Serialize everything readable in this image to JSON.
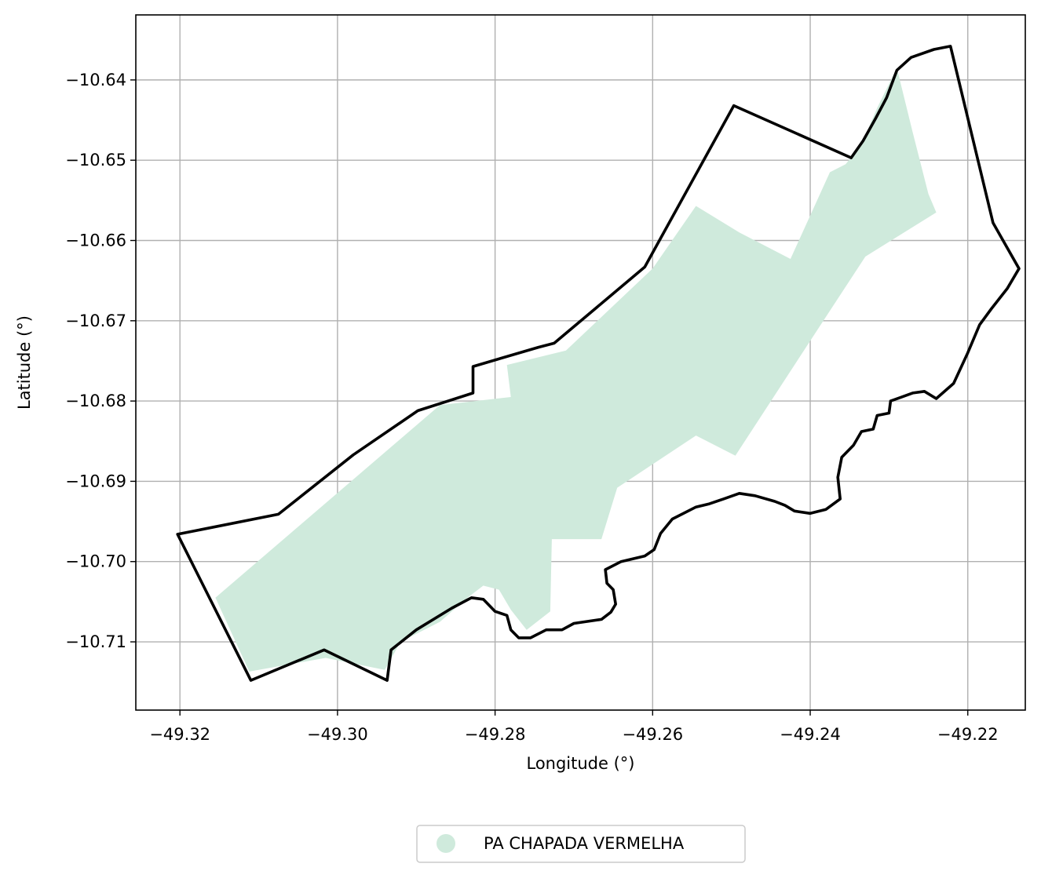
{
  "chart_data": {
    "type": "map",
    "title": "",
    "xlabel": "Longitude (°)",
    "ylabel": "Latitude (°)",
    "xlim": [
      -49.3256,
      -49.2127
    ],
    "ylim": [
      -10.7185,
      -10.6319
    ],
    "grid": true,
    "x_ticks": [
      {
        "value": -49.32,
        "label": "−49.32"
      },
      {
        "value": -49.3,
        "label": "−49.30"
      },
      {
        "value": -49.28,
        "label": "−49.28"
      },
      {
        "value": -49.26,
        "label": "−49.26"
      },
      {
        "value": -49.24,
        "label": "−49.24"
      },
      {
        "value": -49.22,
        "label": "−49.22"
      }
    ],
    "y_ticks": [
      {
        "value": -10.64,
        "label": "−10.64"
      },
      {
        "value": -10.65,
        "label": "−10.65"
      },
      {
        "value": -10.66,
        "label": "−10.66"
      },
      {
        "value": -10.67,
        "label": "−10.67"
      },
      {
        "value": -10.68,
        "label": "−10.68"
      },
      {
        "value": -10.69,
        "label": "−10.69"
      },
      {
        "value": -10.7,
        "label": "−10.70"
      },
      {
        "value": -10.71,
        "label": "−10.71"
      }
    ],
    "layers": [
      {
        "kind": "filled-polygon",
        "name": "PA CHAPADA VERMELHA",
        "color": "#cfeadc",
        "coordinates": [
          [
            -49.3155,
            -10.7045
          ],
          [
            -49.3112,
            -10.7137
          ],
          [
            -49.3015,
            -10.712
          ],
          [
            -49.294,
            -10.7135
          ],
          [
            -49.292,
            -10.71
          ],
          [
            -49.287,
            -10.7075
          ],
          [
            -49.2835,
            -10.7045
          ],
          [
            -49.2815,
            -10.703
          ],
          [
            -49.2795,
            -10.7035
          ],
          [
            -49.278,
            -10.706
          ],
          [
            -49.276,
            -10.7085
          ],
          [
            -49.273,
            -10.7062
          ],
          [
            -49.2728,
            -10.6972
          ],
          [
            -49.2665,
            -10.6972
          ],
          [
            -49.2645,
            -10.6908
          ],
          [
            -49.2545,
            -10.6843
          ],
          [
            -49.2495,
            -10.6868
          ],
          [
            -49.239,
            -10.671
          ],
          [
            -49.233,
            -10.662
          ],
          [
            -49.224,
            -10.6565
          ],
          [
            -49.225,
            -10.6542
          ],
          [
            -49.227,
            -10.6465
          ],
          [
            -49.229,
            -10.6385
          ],
          [
            -49.2315,
            -10.6435
          ],
          [
            -49.2335,
            -10.648
          ],
          [
            -49.2355,
            -10.6505
          ],
          [
            -49.2375,
            -10.6515
          ],
          [
            -49.2425,
            -10.6623
          ],
          [
            -49.249,
            -10.659
          ],
          [
            -49.2545,
            -10.6557
          ],
          [
            -49.26,
            -10.6635
          ],
          [
            -49.271,
            -10.6737
          ],
          [
            -49.2785,
            -10.6755
          ],
          [
            -49.278,
            -10.6795
          ],
          [
            -49.287,
            -10.6805
          ]
        ]
      },
      {
        "kind": "outline",
        "name": "boundary",
        "color": "#000000",
        "coordinates": [
          [
            -49.3203,
            -10.6966
          ],
          [
            -49.311,
            -10.7148
          ],
          [
            -49.3017,
            -10.711
          ],
          [
            -49.2937,
            -10.7148
          ],
          [
            -49.2932,
            -10.711
          ],
          [
            -49.29,
            -10.7085
          ],
          [
            -49.2855,
            -10.7058
          ],
          [
            -49.283,
            -10.7045
          ],
          [
            -49.2815,
            -10.7047
          ],
          [
            -49.28,
            -10.7062
          ],
          [
            -49.2785,
            -10.7067
          ],
          [
            -49.278,
            -10.7085
          ],
          [
            -49.277,
            -10.7095
          ],
          [
            -49.2755,
            -10.7095
          ],
          [
            -49.2735,
            -10.7085
          ],
          [
            -49.2715,
            -10.7085
          ],
          [
            -49.27,
            -10.7077
          ],
          [
            -49.2665,
            -10.7072
          ],
          [
            -49.2653,
            -10.7063
          ],
          [
            -49.2647,
            -10.7053
          ],
          [
            -49.265,
            -10.7035
          ],
          [
            -49.2658,
            -10.7027
          ],
          [
            -49.266,
            -10.701
          ],
          [
            -49.264,
            -10.7
          ],
          [
            -49.261,
            -10.6993
          ],
          [
            -49.2598,
            -10.6985
          ],
          [
            -49.259,
            -10.6965
          ],
          [
            -49.2575,
            -10.6947
          ],
          [
            -49.2545,
            -10.6932
          ],
          [
            -49.2528,
            -10.6928
          ],
          [
            -49.251,
            -10.6922
          ],
          [
            -49.249,
            -10.6915
          ],
          [
            -49.247,
            -10.6918
          ],
          [
            -49.2445,
            -10.6925
          ],
          [
            -49.2432,
            -10.693
          ],
          [
            -49.242,
            -10.6937
          ],
          [
            -49.24,
            -10.694
          ],
          [
            -49.238,
            -10.6935
          ],
          [
            -49.2362,
            -10.6922
          ],
          [
            -49.2365,
            -10.6895
          ],
          [
            -49.236,
            -10.687
          ],
          [
            -49.2345,
            -10.6855
          ],
          [
            -49.2335,
            -10.6838
          ],
          [
            -49.232,
            -10.6835
          ],
          [
            -49.2315,
            -10.6818
          ],
          [
            -49.23,
            -10.6815
          ],
          [
            -49.2298,
            -10.68
          ],
          [
            -49.227,
            -10.679
          ],
          [
            -49.2255,
            -10.6788
          ],
          [
            -49.224,
            -10.6797
          ],
          [
            -49.2218,
            -10.6778
          ],
          [
            -49.22,
            -10.674
          ],
          [
            -49.2185,
            -10.6705
          ],
          [
            -49.217,
            -10.6685
          ],
          [
            -49.215,
            -10.666
          ],
          [
            -49.2135,
            -10.6635
          ],
          [
            -49.2168,
            -10.6578
          ],
          [
            -49.2222,
            -10.6358
          ],
          [
            -49.2243,
            -10.6362
          ],
          [
            -49.2272,
            -10.6372
          ],
          [
            -49.229,
            -10.6388
          ],
          [
            -49.2303,
            -10.6422
          ],
          [
            -49.2317,
            -10.6448
          ],
          [
            -49.2333,
            -10.6476
          ],
          [
            -49.2348,
            -10.6497
          ],
          [
            -49.2497,
            -10.6432
          ],
          [
            -49.261,
            -10.6633
          ],
          [
            -49.2725,
            -10.6728
          ],
          [
            -49.2745,
            -10.6733
          ],
          [
            -49.2828,
            -10.6757
          ],
          [
            -49.2828,
            -10.679
          ],
          [
            -49.2898,
            -10.6812
          ],
          [
            -49.298,
            -10.6867
          ],
          [
            -49.3075,
            -10.6941
          ]
        ]
      }
    ],
    "legend": {
      "placement": "bottom-center",
      "entries": [
        {
          "label": "PA CHAPADA VERMELHA",
          "color": "#cfeadc",
          "marker": "circle"
        }
      ]
    }
  }
}
